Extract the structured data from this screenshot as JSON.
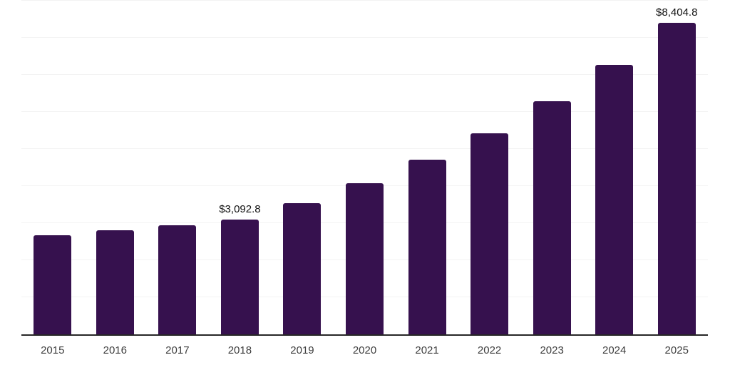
{
  "chart_data": {
    "type": "bar",
    "title": "",
    "xlabel": "",
    "ylabel": "",
    "categories": [
      "2015",
      "2016",
      "2017",
      "2018",
      "2019",
      "2020",
      "2021",
      "2022",
      "2023",
      "2024",
      "2025"
    ],
    "values": [
      2670,
      2810,
      2950,
      3092.8,
      3540,
      4080,
      4710,
      5420,
      6290,
      7270,
      8404.8
    ],
    "annotations": [
      {
        "index": 3,
        "text": "$3,092.8"
      },
      {
        "index": 10,
        "text": "$8,404.8"
      }
    ],
    "y_axis": {
      "min": 0,
      "max": 9000,
      "gridline_step": 1000,
      "tick_labels_visible": false
    },
    "layout": {
      "grid": "horizontal",
      "legend": "none",
      "bar_corner_radius": "rounded-top"
    },
    "colors": {
      "bar": "#36114E",
      "gridline": "#f3f3f3",
      "axis_line": "#262626",
      "tick_text": "#3d3d3d",
      "value_label_text": "#111111",
      "background": "#ffffff"
    }
  }
}
